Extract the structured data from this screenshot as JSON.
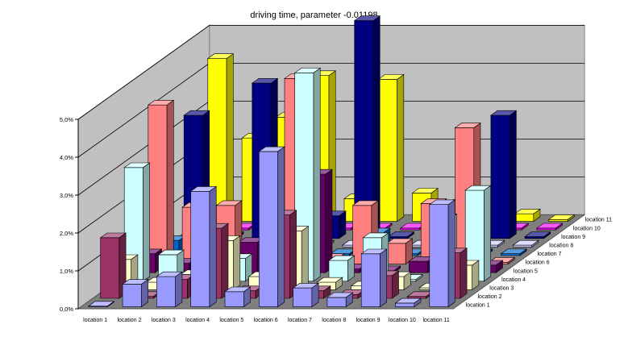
{
  "chart_data": {
    "type": "bar3d",
    "title": "driving time, parameter -0.01198",
    "xlabel": "",
    "ylabel": "",
    "zlabel": "",
    "ylim": [
      0,
      5
    ],
    "ytick_labels": [
      "0,0%",
      "1,0%",
      "2,0%",
      "3,0%",
      "4,0%",
      "5,0%"
    ],
    "categories": [
      "location 1",
      "location 2",
      "location 3",
      "location 4",
      "location 5",
      "location 6",
      "location 7",
      "location 8",
      "location 9",
      "location 10",
      "location 11"
    ],
    "series": [
      {
        "name": "location 1",
        "color": "#9999ff",
        "values": [
          0.02,
          0.6,
          0.8,
          3.05,
          0.4,
          4.1,
          0.5,
          0.25,
          1.4,
          0.1,
          2.7
        ]
      },
      {
        "name": "location 2",
        "color": "#993366",
        "values": [
          1.6,
          0.05,
          0.5,
          1.85,
          0.2,
          2.2,
          0.2,
          0.1,
          0.6,
          0.05,
          1.2
        ]
      },
      {
        "name": "location 3",
        "color": "#ffffcc",
        "values": [
          0.8,
          0.2,
          0.4,
          1.3,
          0.35,
          1.55,
          0.2,
          0.1,
          0.35,
          0.05,
          0.65
        ]
      },
      {
        "name": "location 4",
        "color": "#ccffff",
        "values": [
          3.0,
          0.7,
          0.2,
          0.6,
          0.1,
          5.5,
          0.55,
          1.15,
          0.05,
          1.65,
          2.4
        ]
      },
      {
        "name": "location 5",
        "color": "#660066",
        "values": [
          0.5,
          0.25,
          0.5,
          0.8,
          0.7,
          2.6,
          0.1,
          0.05,
          0.3,
          0.5,
          0.2
        ]
      },
      {
        "name": "location 6",
        "color": "#ff8080",
        "values": [
          4.2,
          1.5,
          1.55,
          0.1,
          4.9,
          0.15,
          1.55,
          0.55,
          1.6,
          3.6,
          0.05
        ]
      },
      {
        "name": "location 7",
        "color": "#0066cc",
        "values": [
          0.4,
          0.1,
          0.05,
          0.1,
          0.6,
          0.05,
          0.6,
          0.05,
          0.05,
          0.05,
          0.05
        ]
      },
      {
        "name": "location 8",
        "color": "#ccccff",
        "values": [
          0.05,
          0.05,
          0.05,
          0.05,
          0.05,
          0.05,
          0.05,
          0.05,
          0.05,
          0.05,
          0.05
        ]
      },
      {
        "name": "location 9",
        "color": "#000080",
        "values": [
          3.25,
          0.05,
          4.1,
          0.05,
          0.6,
          5.75,
          0.05,
          0.05,
          0.05,
          3.25,
          0.05
        ]
      },
      {
        "name": "location 10",
        "color": "#ff00ff",
        "values": [
          0.05,
          0.05,
          0.05,
          0.05,
          0.05,
          0.05,
          0.05,
          0.05,
          0.05,
          0.05,
          0.05
        ]
      },
      {
        "name": "location 11",
        "color": "#ffff00",
        "values": [
          4.3,
          2.2,
          2.75,
          3.85,
          0.6,
          3.75,
          0.75,
          0.45,
          0.1,
          0.2,
          0.05
        ]
      }
    ],
    "grid": true,
    "legend": "none"
  }
}
